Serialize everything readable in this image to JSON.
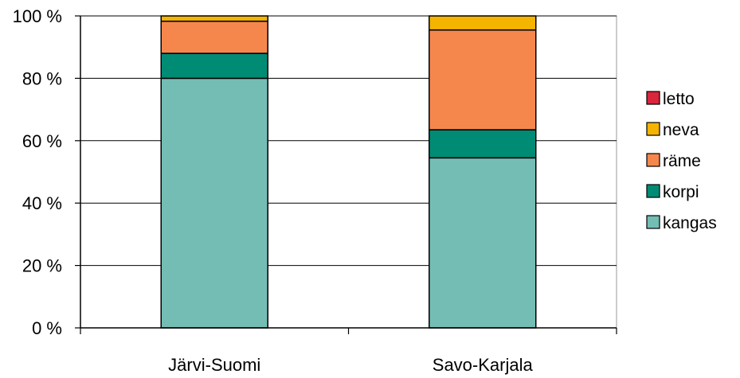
{
  "chart_data": {
    "type": "bar",
    "stacked": true,
    "categories": [
      "Järvi-Suomi",
      "Savo-Karjala"
    ],
    "series": [
      {
        "name": "kangas",
        "values": [
          80,
          54.5
        ],
        "color": "#73BDB5"
      },
      {
        "name": "korpi",
        "values": [
          8,
          9
        ],
        "color": "#008B74"
      },
      {
        "name": "räme",
        "values": [
          10.3,
          32
        ],
        "color": "#F5874D"
      },
      {
        "name": "neva",
        "values": [
          1.7,
          4.5
        ],
        "color": "#F4B400"
      },
      {
        "name": "letto",
        "values": [
          0,
          0
        ],
        "color": "#D9263B"
      }
    ],
    "y_ticks": [
      "0 %",
      "20 %",
      "40 %",
      "60 %",
      "80 %",
      "100 %"
    ],
    "ylim": [
      0,
      100
    ],
    "grid": true,
    "legend_position": "right",
    "legend_order": [
      "letto",
      "neva",
      "räme",
      "korpi",
      "kangas"
    ]
  }
}
